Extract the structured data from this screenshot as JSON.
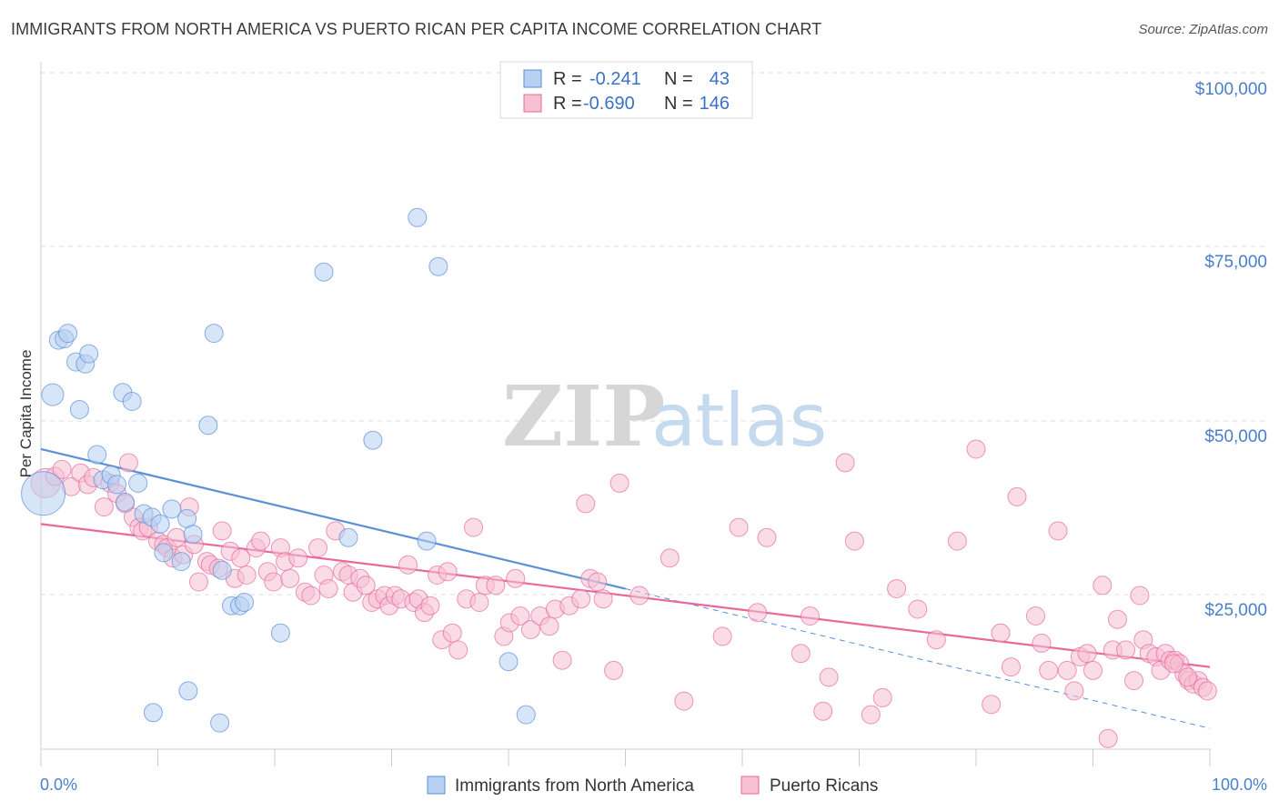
{
  "title": "IMMIGRANTS FROM NORTH AMERICA VS PUERTO RICAN PER CAPITA INCOME CORRELATION CHART",
  "source": "Source: ZipAtlas.com",
  "watermark": {
    "zip": "ZIP",
    "atlas": "atlas"
  },
  "colors": {
    "blue": "#5b8fd6",
    "blue_fill": "#b7d0f2",
    "pink": "#e8699a",
    "pink_fill": "#f6c0d2",
    "tick": "#4a7fc9",
    "grid": "#dcdcdc"
  },
  "legend": {
    "r_label": "R =",
    "n_label": "N =",
    "rows": [
      {
        "r": "-0.241",
        "n": "43"
      },
      {
        "r": "-0.690",
        "n": "146"
      }
    ]
  },
  "bottom_legend": [
    "Immigrants from North America",
    "Puerto Ricans"
  ],
  "chart_data": {
    "type": "scatter",
    "ylabel": "Per Capita Income",
    "xlabel": "",
    "x_tick_labels": [
      "0.0%",
      "100.0%"
    ],
    "y_tick_labels": [
      "$25,000",
      "$50,000",
      "$75,000",
      "$100,000"
    ],
    "xlim": [
      0,
      100
    ],
    "ylim": [
      0,
      105000
    ],
    "grid": true,
    "legend_position": "top-center",
    "series": [
      {
        "name": "Immigrants from North America",
        "color": "#5b8fd6",
        "trend": {
          "x0": 0,
          "y0": 47000,
          "x1": 50,
          "y1": 26500,
          "dashed_to_x": 100,
          "dashed_to_y": 6000
        },
        "points": [
          [
            0.2,
            40500,
            24
          ],
          [
            1,
            55000,
            12
          ],
          [
            1.5,
            63000,
            10
          ],
          [
            2,
            63200,
            10
          ],
          [
            2.3,
            64000,
            10
          ],
          [
            3,
            59800,
            10
          ],
          [
            3.3,
            52800,
            10
          ],
          [
            3.8,
            59500,
            10
          ],
          [
            4.1,
            61000,
            10
          ],
          [
            4.8,
            46200,
            10
          ],
          [
            5.3,
            42500,
            10
          ],
          [
            6,
            43200,
            10
          ],
          [
            6.5,
            41800,
            10
          ],
          [
            7.2,
            39200,
            10
          ],
          [
            7.0,
            55300,
            10
          ],
          [
            7.8,
            54000,
            10
          ],
          [
            8.3,
            42000,
            10
          ],
          [
            8.8,
            37500,
            10
          ],
          [
            9.5,
            37000,
            10
          ],
          [
            10.2,
            36000,
            10
          ],
          [
            10.5,
            31800,
            10
          ],
          [
            11.2,
            38200,
            10
          ],
          [
            12.0,
            30500,
            10
          ],
          [
            12.5,
            36800,
            10
          ],
          [
            13.0,
            34500,
            10
          ],
          [
            14.3,
            50500,
            10
          ],
          [
            14.8,
            64000,
            10
          ],
          [
            15.5,
            29200,
            10
          ],
          [
            16.3,
            24000,
            10
          ],
          [
            17.0,
            24000,
            10
          ],
          [
            17.4,
            24500,
            10
          ],
          [
            20.5,
            20000,
            10
          ],
          [
            24.2,
            73000,
            10
          ],
          [
            26.3,
            34000,
            10
          ],
          [
            28.4,
            48300,
            10
          ],
          [
            32.2,
            81000,
            10
          ],
          [
            33.0,
            33500,
            10
          ],
          [
            34.0,
            73800,
            10
          ],
          [
            12.6,
            11500,
            10
          ],
          [
            9.6,
            8300,
            10
          ],
          [
            15.3,
            6800,
            10
          ],
          [
            40.0,
            15800,
            10
          ],
          [
            41.5,
            8000,
            10
          ]
        ]
      },
      {
        "name": "Puerto Ricans",
        "color": "#e8699a",
        "trend": {
          "x0": 0,
          "y0": 36000,
          "x1": 100,
          "y1": 15000
        },
        "points": [
          [
            0.4,
            42000,
            16
          ],
          [
            1.2,
            43000,
            10
          ],
          [
            1.8,
            44000,
            10
          ],
          [
            2.6,
            41500,
            10
          ],
          [
            3.4,
            43500,
            10
          ],
          [
            4.0,
            41800,
            10
          ],
          [
            4.5,
            42800,
            10
          ],
          [
            5.4,
            38500,
            10
          ],
          [
            5.9,
            42000,
            10
          ],
          [
            6.5,
            40500,
            10
          ],
          [
            7.2,
            39000,
            10
          ],
          [
            7.5,
            45000,
            10
          ],
          [
            7.9,
            37000,
            10
          ],
          [
            8.4,
            35500,
            10
          ],
          [
            8.7,
            35000,
            10
          ],
          [
            9.2,
            35500,
            10
          ],
          [
            10.0,
            33500,
            10
          ],
          [
            10.5,
            33000,
            10
          ],
          [
            10.8,
            32500,
            10
          ],
          [
            11.3,
            31000,
            10
          ],
          [
            11.6,
            34000,
            10
          ],
          [
            12.2,
            31500,
            10
          ],
          [
            12.7,
            38500,
            10
          ],
          [
            13.1,
            33000,
            10
          ],
          [
            13.5,
            27500,
            10
          ],
          [
            14.2,
            30500,
            10
          ],
          [
            14.5,
            30000,
            10
          ],
          [
            15.2,
            29500,
            10
          ],
          [
            15.5,
            35000,
            10
          ],
          [
            16.2,
            32000,
            10
          ],
          [
            16.6,
            28000,
            10
          ],
          [
            17.1,
            31000,
            10
          ],
          [
            17.6,
            28500,
            10
          ],
          [
            18.4,
            32500,
            10
          ],
          [
            18.8,
            33500,
            10
          ],
          [
            19.4,
            29000,
            10
          ],
          [
            19.9,
            27500,
            10
          ],
          [
            20.5,
            32500,
            10
          ],
          [
            20.9,
            30500,
            10
          ],
          [
            21.3,
            28000,
            10
          ],
          [
            22.0,
            31000,
            10
          ],
          [
            22.6,
            26000,
            10
          ],
          [
            23.1,
            25500,
            10
          ],
          [
            23.7,
            32500,
            10
          ],
          [
            24.2,
            28500,
            10
          ],
          [
            24.6,
            26500,
            10
          ],
          [
            25.2,
            35000,
            10
          ],
          [
            25.8,
            29000,
            10
          ],
          [
            26.3,
            28500,
            10
          ],
          [
            26.7,
            26000,
            10
          ],
          [
            27.3,
            28000,
            10
          ],
          [
            27.8,
            27000,
            10
          ],
          [
            28.3,
            24500,
            10
          ],
          [
            28.8,
            25000,
            10
          ],
          [
            29.4,
            25500,
            10
          ],
          [
            29.8,
            24000,
            10
          ],
          [
            30.3,
            25500,
            10
          ],
          [
            30.8,
            25000,
            10
          ],
          [
            31.4,
            30000,
            10
          ],
          [
            31.9,
            24500,
            10
          ],
          [
            32.3,
            25000,
            10
          ],
          [
            32.8,
            23000,
            10
          ],
          [
            33.3,
            24000,
            10
          ],
          [
            33.9,
            28500,
            10
          ],
          [
            34.3,
            19000,
            10
          ],
          [
            34.8,
            29000,
            10
          ],
          [
            35.2,
            20000,
            10
          ],
          [
            35.7,
            17500,
            10
          ],
          [
            36.4,
            25000,
            10
          ],
          [
            37.0,
            35500,
            10
          ],
          [
            37.5,
            24500,
            10
          ],
          [
            38.0,
            27000,
            10
          ],
          [
            38.9,
            27000,
            10
          ],
          [
            39.6,
            19500,
            10
          ],
          [
            40.1,
            21500,
            10
          ],
          [
            40.6,
            28000,
            10
          ],
          [
            41.0,
            22500,
            10
          ],
          [
            41.9,
            20500,
            10
          ],
          [
            42.7,
            22500,
            10
          ],
          [
            43.5,
            21000,
            10
          ],
          [
            44.0,
            23500,
            10
          ],
          [
            44.6,
            16000,
            10
          ],
          [
            45.2,
            24000,
            10
          ],
          [
            46.2,
            25000,
            10
          ],
          [
            46.6,
            39000,
            10
          ],
          [
            47.0,
            28000,
            10
          ],
          [
            47.6,
            27500,
            10
          ],
          [
            48.1,
            25000,
            10
          ],
          [
            49.0,
            14500,
            10
          ],
          [
            49.5,
            42000,
            10
          ],
          [
            51.2,
            25500,
            10
          ],
          [
            53.8,
            31000,
            10
          ],
          [
            55.0,
            10000,
            10
          ],
          [
            58.3,
            19500,
            10
          ],
          [
            59.7,
            35500,
            10
          ],
          [
            61.3,
            23000,
            10
          ],
          [
            62.1,
            34000,
            10
          ],
          [
            65.0,
            17000,
            10
          ],
          [
            65.8,
            22500,
            10
          ],
          [
            66.9,
            8500,
            10
          ],
          [
            67.4,
            13500,
            10
          ],
          [
            68.8,
            45000,
            10
          ],
          [
            69.6,
            33500,
            10
          ],
          [
            71.0,
            8000,
            10
          ],
          [
            72.0,
            10500,
            10
          ],
          [
            73.2,
            26500,
            10
          ],
          [
            75.0,
            23500,
            10
          ],
          [
            76.6,
            19000,
            10
          ],
          [
            78.4,
            33500,
            10
          ],
          [
            80.0,
            47000,
            10
          ],
          [
            81.3,
            9500,
            10
          ],
          [
            82.1,
            20000,
            10
          ],
          [
            83.0,
            15000,
            10
          ],
          [
            83.5,
            40000,
            10
          ],
          [
            85.1,
            22500,
            10
          ],
          [
            85.6,
            18500,
            10
          ],
          [
            86.2,
            14500,
            10
          ],
          [
            87.0,
            35000,
            10
          ],
          [
            87.8,
            14500,
            10
          ],
          [
            88.4,
            11500,
            10
          ],
          [
            88.9,
            16500,
            10
          ],
          [
            89.5,
            17000,
            10
          ],
          [
            90.0,
            14500,
            10
          ],
          [
            90.8,
            27000,
            10
          ],
          [
            91.3,
            4500,
            10
          ],
          [
            91.7,
            17500,
            10
          ],
          [
            92.1,
            22000,
            10
          ],
          [
            92.8,
            17500,
            10
          ],
          [
            93.5,
            13000,
            10
          ],
          [
            94.0,
            25500,
            10
          ],
          [
            94.3,
            19000,
            10
          ],
          [
            94.8,
            17000,
            10
          ],
          [
            95.4,
            16500,
            10
          ],
          [
            95.8,
            14500,
            10
          ],
          [
            96.2,
            17000,
            10
          ],
          [
            96.6,
            16000,
            10
          ],
          [
            97.0,
            16000,
            10
          ],
          [
            97.4,
            15500,
            10
          ],
          [
            97.8,
            14000,
            10
          ],
          [
            98.2,
            13000,
            10
          ],
          [
            98.6,
            12500,
            10
          ],
          [
            99.0,
            13000,
            10
          ],
          [
            99.4,
            12000,
            10
          ],
          [
            99.8,
            11500,
            10
          ],
          [
            96.9,
            15500,
            10
          ],
          [
            98.1,
            13500,
            10
          ]
        ]
      }
    ]
  }
}
